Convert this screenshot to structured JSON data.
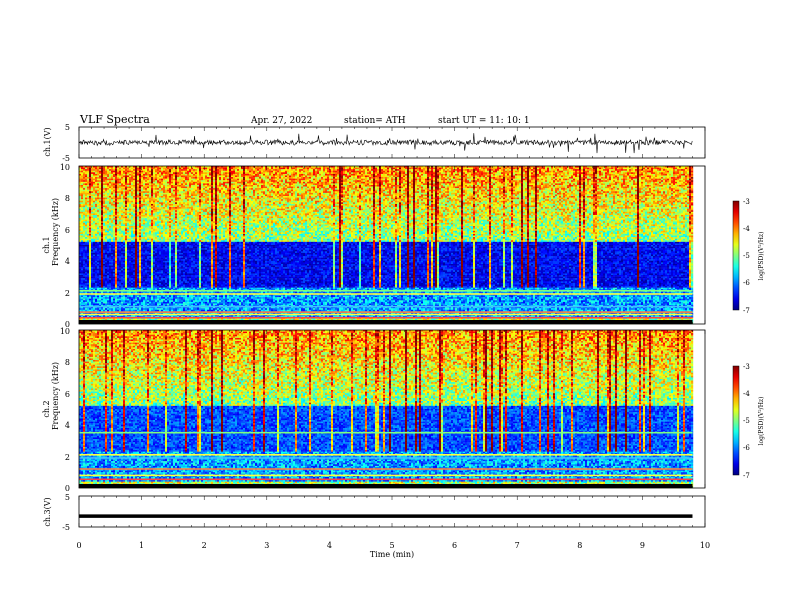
{
  "header": {
    "title": "VLF  Spectra",
    "date": "Apr. 27, 2022",
    "station": "station= ATH",
    "start": "start  UT  =    11: 10: 1"
  },
  "chart_data": [
    {
      "type": "line",
      "name": "ch1-waveform",
      "ylabel": "ch.1(V)",
      "ylim": [
        -5,
        5
      ],
      "yticks": [
        "5",
        "-5"
      ],
      "xlim": [
        0,
        10
      ],
      "baseline": 0,
      "trace_end_min": 9.8
    },
    {
      "type": "heatmap",
      "name": "ch1-spectrogram",
      "ylabel_channel": "ch.1",
      "ylabel": "Frequency  (kHz)",
      "ylim": [
        0,
        10
      ],
      "yticks": [
        "0",
        "2",
        "4",
        "6",
        "8",
        "10"
      ],
      "xlim": [
        0,
        10
      ],
      "data_end_min": 9.8,
      "colorbar": {
        "label": "log(PSD)(V²/Hz)",
        "range": [
          -7,
          -3
        ],
        "ticks": [
          "-3",
          "-4",
          "-5",
          "-6",
          "-7"
        ]
      }
    },
    {
      "type": "heatmap",
      "name": "ch2-spectrogram",
      "ylabel_channel": "ch.2",
      "ylabel": "Frequency  (kHz)",
      "ylim": [
        0,
        10
      ],
      "yticks": [
        "0",
        "2",
        "4",
        "6",
        "8",
        "10"
      ],
      "xlim": [
        0,
        10
      ],
      "data_end_min": 9.8,
      "colorbar": {
        "label": "log(PSD)(V²/Hz)",
        "range": [
          -7,
          -3
        ],
        "ticks": [
          "-3",
          "-4",
          "-5",
          "-6",
          "-7"
        ]
      }
    },
    {
      "type": "line",
      "name": "ch3-waveform",
      "ylabel": "ch.3(V)",
      "ylim": [
        -5,
        5
      ],
      "yticks": [
        "5",
        "-5"
      ],
      "xlim": [
        0,
        10
      ],
      "constant_value": -1.5,
      "trace_end_min": 9.8,
      "xlabel": "Time  (min)",
      "xticks": [
        "0",
        "1",
        "2",
        "3",
        "4",
        "5",
        "6",
        "7",
        "8",
        "9",
        "10"
      ]
    }
  ]
}
